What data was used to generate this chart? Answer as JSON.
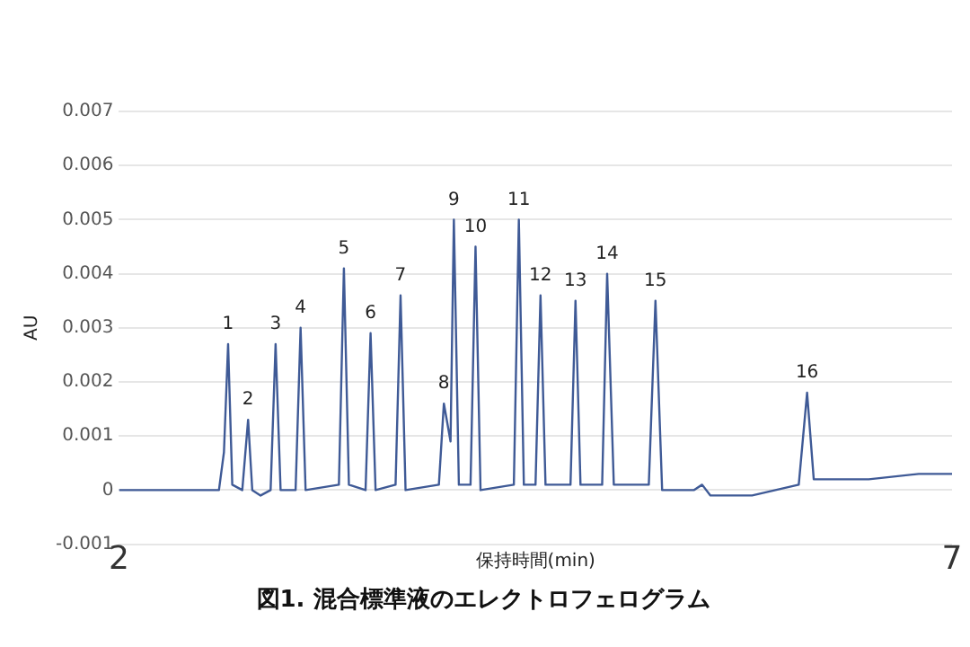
{
  "chart_data": {
    "type": "line",
    "title": "図1. 混合標準液のエレクトロフェログラム",
    "xlabel": "保持時間(min)",
    "ylabel": "AU",
    "xlim": [
      2,
      7
    ],
    "xticks": [
      2,
      7
    ],
    "ylim": [
      -0.001,
      0.007
    ],
    "yticks": [
      -0.001,
      0,
      0.001,
      0.002,
      0.003,
      0.004,
      0.005,
      0.006,
      0.007
    ],
    "grid": "y",
    "legend": false,
    "marker": "none",
    "line_style": "solid",
    "series": [
      {
        "color": "#3f5a96",
        "x": [
          2.0,
          2.3,
          2.5,
          2.6,
          2.63,
          2.655,
          2.68,
          2.74,
          2.775,
          2.8,
          2.85,
          2.91,
          2.94,
          2.97,
          3.06,
          3.09,
          3.12,
          3.32,
          3.35,
          3.38,
          3.48,
          3.51,
          3.54,
          3.66,
          3.69,
          3.72,
          3.92,
          3.95,
          3.99,
          4.01,
          4.04,
          4.11,
          4.14,
          4.17,
          4.37,
          4.4,
          4.43,
          4.5,
          4.53,
          4.56,
          4.71,
          4.74,
          4.77,
          4.9,
          4.93,
          4.97,
          5.18,
          5.22,
          5.26,
          5.45,
          5.5,
          5.55,
          5.8,
          6.08,
          6.13,
          6.17,
          6.5,
          6.8,
          7.0
        ],
        "values": [
          0,
          0,
          0,
          0,
          0.0007,
          0.0027,
          0.0001,
          0,
          0.0013,
          0,
          -0.0001,
          0,
          0.0027,
          0,
          0,
          0.003,
          0,
          0.0001,
          0.0041,
          0.0001,
          0,
          0.0029,
          0,
          0.0001,
          0.0036,
          0,
          0.0001,
          0.0016,
          0.0009,
          0.005,
          0.0001,
          0.0001,
          0.0045,
          0,
          0.0001,
          0.005,
          0.0001,
          0.0001,
          0.0036,
          0.0001,
          0.0001,
          0.0035,
          0.0001,
          0.0001,
          0.004,
          0.0001,
          0.0001,
          0.0035,
          0,
          0,
          0.0001,
          -0.0001,
          -0.0001,
          0.0001,
          0.0018,
          0.0002,
          0.0002,
          0.0003,
          0.0003
        ]
      }
    ],
    "annotations": [
      {
        "text": "1",
        "x": 2.655,
        "y": 0.0027
      },
      {
        "text": "2",
        "x": 2.775,
        "y": 0.0013
      },
      {
        "text": "3",
        "x": 2.94,
        "y": 0.0027
      },
      {
        "text": "4",
        "x": 3.09,
        "y": 0.003
      },
      {
        "text": "5",
        "x": 3.35,
        "y": 0.0041
      },
      {
        "text": "6",
        "x": 3.51,
        "y": 0.0029
      },
      {
        "text": "7",
        "x": 3.69,
        "y": 0.0036
      },
      {
        "text": "8",
        "x": 3.95,
        "y": 0.0016
      },
      {
        "text": "9",
        "x": 4.01,
        "y": 0.005
      },
      {
        "text": "10",
        "x": 4.14,
        "y": 0.0045
      },
      {
        "text": "11",
        "x": 4.4,
        "y": 0.005
      },
      {
        "text": "12",
        "x": 4.53,
        "y": 0.0036
      },
      {
        "text": "13",
        "x": 4.74,
        "y": 0.0035
      },
      {
        "text": "14",
        "x": 4.93,
        "y": 0.004
      },
      {
        "text": "15",
        "x": 5.22,
        "y": 0.0035
      },
      {
        "text": "16",
        "x": 6.13,
        "y": 0.0018
      }
    ]
  }
}
